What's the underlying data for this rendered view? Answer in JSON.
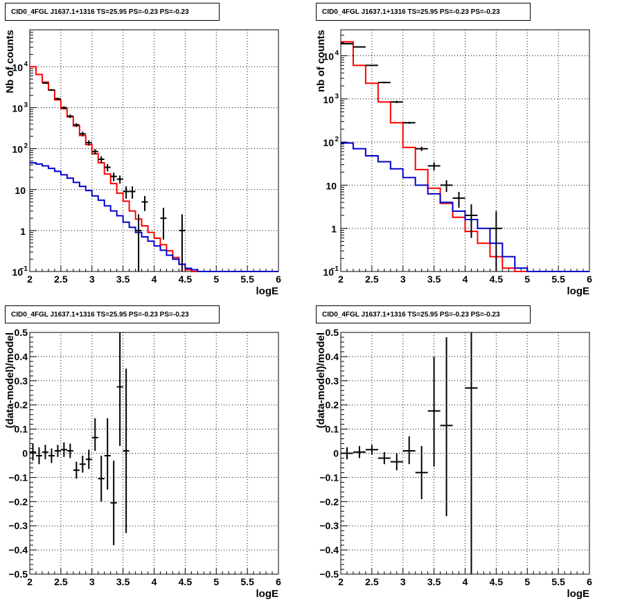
{
  "chart_data": [
    {
      "type": "line",
      "title": "CID0_4FGL J1637.1+1316 TS=25.95 PS=-0.23 PS=-0.23",
      "xlabel": "logE",
      "ylabel": "Nb of counts",
      "xlim": [
        2,
        6
      ],
      "ylim": [
        0.1,
        80000
      ],
      "y_scale": "log",
      "grid": true,
      "x_ticks": [
        "2",
        "2.5",
        "3",
        "3.5",
        "4",
        "4.5",
        "5",
        "5.5",
        "6"
      ],
      "y_ticks": [
        "10^-1",
        "1",
        "10",
        "10^2",
        "10^3",
        "10^4"
      ],
      "bin_edges": [
        2.0,
        2.1,
        2.2,
        2.3,
        2.4,
        2.5,
        2.6,
        2.7,
        2.8,
        2.9,
        3.0,
        3.1,
        3.2,
        3.3,
        3.4,
        3.5,
        3.6,
        3.7,
        3.8,
        3.9,
        4.0,
        4.1,
        4.2,
        4.3,
        4.4,
        4.5,
        4.6,
        4.7,
        4.8,
        4.9,
        5.0,
        5.1,
        5.2,
        5.3,
        5.4,
        5.5,
        5.6,
        5.7,
        5.8,
        5.9,
        6.0
      ],
      "series": [
        {
          "color": "#ff0000",
          "step": true,
          "values": [
            10000,
            6500,
            4200,
            2700,
            1550,
            950,
            600,
            360,
            210,
            125,
            75,
            45,
            24,
            14,
            8.2,
            5.2,
            3.0,
            1.9,
            1.3,
            0.9,
            0.65,
            0.45,
            0.32,
            0.22,
            0.15,
            0.11,
            0.1,
            0.1,
            0.1,
            0.1,
            0.1,
            0.1,
            0.1,
            0.1,
            0.1,
            0.1,
            0.1,
            0.1,
            0.1,
            0.1
          ]
        },
        {
          "color": "#0000cc",
          "step": true,
          "values": [
            45,
            42,
            38,
            33,
            28,
            23,
            19,
            15,
            12,
            9.5,
            7,
            5.5,
            4,
            3,
            2.3,
            1.6,
            1.2,
            0.9,
            0.7,
            0.55,
            0.42,
            0.33,
            0.25,
            0.2,
            0.15,
            0.12,
            0.11,
            0.1,
            0.1,
            0.1,
            0.1,
            0.1,
            0.1,
            0.1,
            0.1,
            0.1,
            0.1,
            0.1,
            0.1,
            0.1
          ]
        }
      ],
      "points": {
        "color": "#000000",
        "x": [
          2.25,
          2.35,
          2.45,
          2.55,
          2.65,
          2.75,
          2.85,
          2.95,
          3.05,
          3.15,
          3.25,
          3.35,
          3.45,
          3.55,
          3.65,
          3.75,
          3.85,
          4.15,
          4.45
        ],
        "y": [
          4000,
          2700,
          1650,
          1000,
          620,
          380,
          230,
          140,
          85,
          55,
          35,
          21,
          18,
          9,
          9,
          1,
          5,
          2,
          1
        ],
        "y_lo": [
          3850,
          2560,
          1540,
          920,
          560,
          340,
          200,
          120,
          72,
          45,
          28,
          16,
          14,
          6,
          6,
          0.1,
          3,
          0.6,
          0.1
        ],
        "y_hi": [
          4150,
          2840,
          1760,
          1080,
          680,
          420,
          260,
          160,
          98,
          65,
          42,
          26,
          22,
          12,
          12,
          2.5,
          7,
          3.6,
          2.5
        ],
        "xerr": 0.05
      }
    },
    {
      "type": "line",
      "title": "CID0_4FGL J1637.1+1316 TS=25.95 PS=-0.23 PS=-0.23",
      "xlabel": "logE",
      "ylabel": "nb of counts",
      "xlim": [
        2,
        6
      ],
      "ylim": [
        0.1,
        40000
      ],
      "y_scale": "log",
      "grid": true,
      "x_ticks": [
        "2",
        "2.5",
        "3",
        "3.5",
        "4",
        "4.5",
        "5",
        "5.5",
        "6"
      ],
      "y_ticks": [
        "10^-1",
        "1",
        "10",
        "10^2",
        "10^3",
        "10^4"
      ],
      "bin_edges": [
        2.0,
        2.2,
        2.4,
        2.6,
        2.8,
        3.0,
        3.2,
        3.4,
        3.6,
        3.8,
        4.0,
        4.2,
        4.4,
        4.6,
        4.8,
        5.0,
        5.2,
        5.4,
        5.6,
        5.8,
        6.0
      ],
      "series": [
        {
          "color": "#ff0000",
          "step": true,
          "values": [
            21000,
            6000,
            2300,
            850,
            280,
            75,
            23,
            8.5,
            3.8,
            1.8,
            0.85,
            0.45,
            0.22,
            0.12,
            0.1,
            0.1,
            0.1,
            0.1,
            0.1,
            0.1
          ]
        },
        {
          "color": "#0000cc",
          "step": true,
          "values": [
            95,
            70,
            48,
            35,
            24,
            15,
            10,
            6.3,
            4.0,
            2.5,
            1.6,
            1.0,
            0.45,
            0.22,
            0.12,
            0.1,
            0.1,
            0.1,
            0.1,
            0.1
          ]
        }
      ],
      "points": {
        "color": "#000000",
        "x": [
          2.1,
          2.3,
          2.5,
          2.7,
          2.9,
          3.1,
          3.3,
          3.5,
          3.7,
          3.9,
          4.1,
          4.5
        ],
        "y": [
          19000,
          16000,
          6000,
          2400,
          850,
          280,
          70,
          28,
          10,
          5,
          2,
          1
        ],
        "y_lo": [
          18700,
          15700,
          5850,
          2300,
          800,
          265,
          62,
          22,
          7,
          3,
          0.6,
          0.1
        ],
        "y_hi": [
          19300,
          16300,
          6150,
          2500,
          900,
          295,
          78,
          34,
          13,
          7,
          3.6,
          2.5
        ],
        "xerr": 0.1
      }
    },
    {
      "type": "scatter",
      "title": "CID0_4FGL J1637.1+1316 TS=25.95 PS=-0.23 PS=-0.23",
      "xlabel": "logE",
      "ylabel": "(data-model)/model",
      "xlim": [
        2,
        6
      ],
      "ylim": [
        -0.5,
        0.5
      ],
      "grid": true,
      "x_ticks": [
        "2",
        "2.5",
        "3",
        "3.5",
        "4",
        "4.5",
        "5",
        "5.5",
        "6"
      ],
      "y_ticks": [
        "-0.5",
        "-0.4",
        "-0.3",
        "-0.2",
        "-0.1",
        "0",
        "0.1",
        "0.2",
        "0.3",
        "0.4",
        "0.5"
      ],
      "points": {
        "color": "#000000",
        "x": [
          2.05,
          2.15,
          2.25,
          2.35,
          2.45,
          2.55,
          2.65,
          2.75,
          2.85,
          2.95,
          3.05,
          3.15,
          3.25,
          3.35,
          3.45,
          3.55
        ],
        "y": [
          0.005,
          -0.01,
          0.005,
          -0.01,
          0.01,
          0.015,
          0.01,
          -0.07,
          -0.045,
          -0.025,
          0.065,
          -0.105,
          -0.01,
          -0.205,
          0.275,
          0.01
        ],
        "y_lo": [
          -0.03,
          -0.045,
          -0.025,
          -0.04,
          -0.015,
          -0.015,
          -0.02,
          -0.105,
          -0.08,
          -0.065,
          0.01,
          -0.2,
          -0.15,
          -0.38,
          0.03,
          -0.33
        ],
        "y_hi": [
          0.04,
          0.025,
          0.035,
          0.02,
          0.035,
          0.045,
          0.04,
          -0.035,
          -0.01,
          0.015,
          0.145,
          -0.01,
          0.145,
          -0.03,
          0.5,
          0.35
        ],
        "xerr": 0.05
      }
    },
    {
      "type": "scatter",
      "title": "CID0_4FGL J1637.1+1316 TS=25.95 PS=-0.23 PS=-0.23",
      "xlabel": "logE",
      "ylabel": "(data-model)/model",
      "xlim": [
        2,
        6
      ],
      "ylim": [
        -0.5,
        0.5
      ],
      "grid": true,
      "x_ticks": [
        "2",
        "2.5",
        "3",
        "3.5",
        "4",
        "4.5",
        "5",
        "5.5",
        "6"
      ],
      "y_ticks": [
        "-0.5",
        "-0.4",
        "-0.3",
        "-0.2",
        "-0.1",
        "0",
        "0.1",
        "0.2",
        "0.3",
        "0.4",
        "0.5"
      ],
      "points": {
        "color": "#000000",
        "x": [
          2.1,
          2.3,
          2.5,
          2.7,
          2.9,
          3.1,
          3.3,
          3.5,
          3.7,
          4.1
        ],
        "y": [
          0.0,
          0.005,
          0.015,
          -0.02,
          -0.035,
          0.01,
          -0.08,
          0.175,
          0.115,
          0.27
        ],
        "y_lo": [
          -0.025,
          -0.02,
          -0.005,
          -0.045,
          -0.07,
          -0.045,
          -0.19,
          -0.055,
          -0.26,
          -0.5
        ],
        "y_hi": [
          0.025,
          0.03,
          0.035,
          0.005,
          0.0,
          0.07,
          0.03,
          0.4,
          0.48,
          0.5
        ],
        "xerr": 0.1
      }
    }
  ]
}
